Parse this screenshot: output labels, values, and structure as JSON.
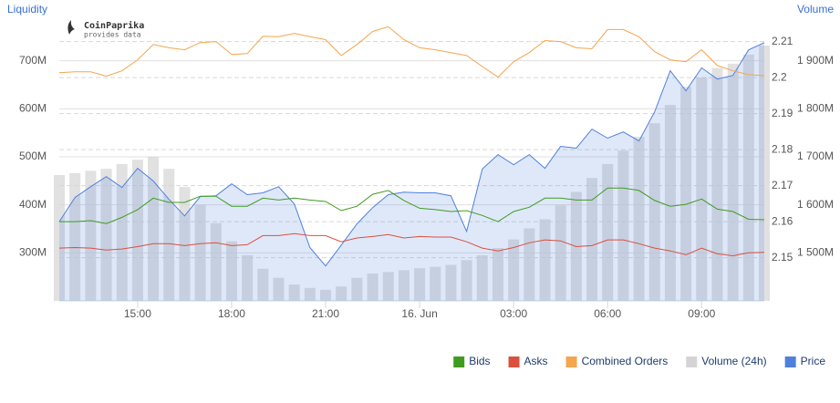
{
  "chart_data": {
    "type": "line",
    "y_title": "Liquidity",
    "y3_title": "Volume",
    "watermark_title": "CoinPaprika",
    "watermark_subtitle": "provides data",
    "x": [
      -11.5,
      -11,
      -10.5,
      -10,
      -9.5,
      -9,
      -8.5,
      -8,
      -7.5,
      -7,
      -6.5,
      -6,
      -5.5,
      -5,
      -4.5,
      -4,
      -3.5,
      -3,
      -2.5,
      -2,
      -1.5,
      -1,
      -0.5,
      0,
      0.5,
      1,
      1.5,
      2,
      2.5,
      3,
      3.5,
      4,
      4.5,
      5,
      5.5,
      6,
      6.5,
      7,
      7.5,
      8,
      8.5,
      9,
      9.5,
      10,
      10.5,
      11
    ],
    "xlim": [
      -11.5,
      11
    ],
    "xticks": [
      {
        "value": -9,
        "label": "15:00"
      },
      {
        "value": -6,
        "label": "18:00"
      },
      {
        "value": -3,
        "label": "21:00"
      },
      {
        "value": 0,
        "label": "16. Jun"
      },
      {
        "value": 3,
        "label": "03:00"
      },
      {
        "value": 6,
        "label": "06:00"
      },
      {
        "value": 9,
        "label": "09:00"
      }
    ],
    "ylim": [
      200,
      800
    ],
    "yticks": [
      {
        "value": 300,
        "label": "300M"
      },
      {
        "value": 400,
        "label": "400M"
      },
      {
        "value": 500,
        "label": "500M"
      },
      {
        "value": 600,
        "label": "600M"
      },
      {
        "value": 700,
        "label": "700M"
      }
    ],
    "y2lim": [
      2.138,
      2.218
    ],
    "y2ticks": [
      2.15,
      2.16,
      2.17,
      2.18,
      2.19,
      2.2,
      2.21
    ],
    "y3lim": [
      1400,
      2000
    ],
    "y3ticks": [
      {
        "value": 1500,
        "label": "1 500M"
      },
      {
        "value": 1600,
        "label": "1 600M"
      },
      {
        "value": 1700,
        "label": "1 700M"
      },
      {
        "value": 1800,
        "label": "1 800M"
      },
      {
        "value": 1900,
        "label": "1 900M"
      }
    ],
    "grid": true,
    "legend": "bottom-right",
    "series": [
      {
        "name": "Bids",
        "color": "#3f9c1f",
        "kind": "line",
        "axis": "y",
        "values": [
          365,
          365,
          367,
          361,
          374,
          390,
          414,
          405,
          405,
          418,
          418,
          397,
          397,
          414,
          410,
          414,
          410,
          407,
          388,
          397,
          422,
          430,
          409,
          393,
          390,
          386,
          388,
          378,
          365,
          386,
          395,
          414,
          414,
          410,
          410,
          435,
          435,
          430,
          409,
          397,
          401,
          412,
          391,
          386,
          370,
          369
        ]
      },
      {
        "name": "Asks",
        "color": "#d9503f",
        "kind": "line",
        "axis": "y",
        "values": [
          310,
          311,
          310,
          306,
          308,
          313,
          319,
          319,
          315,
          319,
          321,
          315,
          317,
          336,
          336,
          340,
          336,
          336,
          323,
          331,
          334,
          338,
          331,
          334,
          333,
          333,
          323,
          310,
          304,
          311,
          321,
          327,
          325,
          313,
          315,
          327,
          327,
          319,
          310,
          304,
          296,
          310,
          298,
          294,
          300,
          301
        ]
      },
      {
        "name": "Combined Orders",
        "color": "#f5a54c",
        "kind": "line",
        "axis": "y",
        "values": [
          675,
          677,
          677,
          668,
          679,
          702,
          734,
          727,
          723,
          738,
          740,
          713,
          715,
          751,
          750,
          757,
          750,
          744,
          711,
          734,
          761,
          771,
          744,
          727,
          723,
          717,
          711,
          688,
          666,
          698,
          717,
          742,
          740,
          727,
          725,
          765,
          765,
          750,
          719,
          702,
          698,
          723,
          690,
          679,
          671,
          669
        ]
      },
      {
        "name": "Volume (24h)",
        "color": "#d4d4d4",
        "kind": "bar",
        "axis": "y3",
        "values": [
          1662,
          1666,
          1671,
          1675,
          1685,
          1694,
          1700,
          1675,
          1637,
          1600,
          1562,
          1524,
          1495,
          1467,
          1448,
          1434,
          1427,
          1423,
          1430,
          1448,
          1457,
          1460,
          1464,
          1468,
          1471,
          1475,
          1485,
          1495,
          1510,
          1528,
          1551,
          1570,
          1599,
          1627,
          1656,
          1685,
          1713,
          1742,
          1770,
          1808,
          1846,
          1865,
          1885,
          1894,
          1913,
          1932
        ]
      },
      {
        "name": "Price",
        "color": "#4f80dc",
        "kind": "area",
        "axis": "y2",
        "values": [
          2.16,
          2.1667,
          2.1697,
          2.1725,
          2.1695,
          2.1748,
          2.1713,
          2.1662,
          2.1616,
          2.167,
          2.1672,
          2.1705,
          2.1675,
          2.168,
          2.1697,
          2.1649,
          2.1528,
          2.1477,
          2.1535,
          2.1594,
          2.1639,
          2.1675,
          2.1682,
          2.168,
          2.168,
          2.1672,
          2.1573,
          2.1746,
          2.1786,
          2.1758,
          2.1786,
          2.1748,
          2.1809,
          2.1804,
          2.1857,
          2.1832,
          2.1849,
          2.1824,
          2.1905,
          2.2019,
          2.1963,
          2.2027,
          2.1996,
          2.2006,
          2.2077,
          2.2097
        ]
      }
    ]
  }
}
